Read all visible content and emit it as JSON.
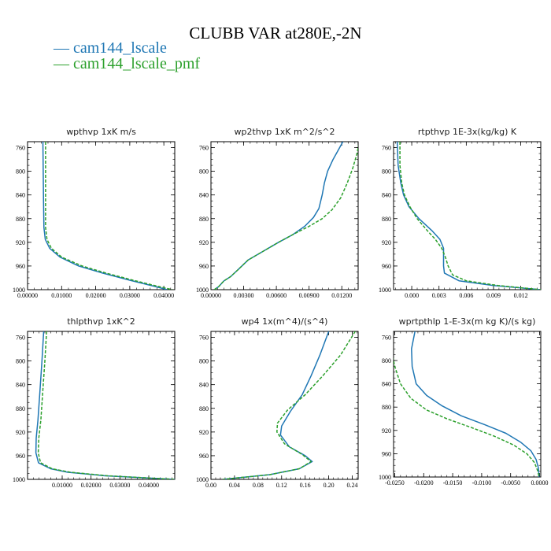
{
  "title": "CLUBB VAR at280E,-2N",
  "legend": [
    {
      "label": "— cam144_lscale",
      "color": "#1f77b4"
    },
    {
      "label": "— cam144_lscale_pmf",
      "color": "#2ca02c"
    }
  ],
  "chart_data": [
    {
      "type": "line",
      "title": "wpthvp   1xK m/s",
      "xlim": [
        0,
        0.0432
      ],
      "ylim": [
        1000,
        750
      ],
      "xticks": [
        "0.00000",
        "0.01000",
        "0.02000",
        "0.03000",
        "0.04000"
      ],
      "xtick_values": [
        0,
        0.01,
        0.02,
        0.03,
        0.04
      ],
      "yticks": [
        "760",
        "800",
        "840",
        "880",
        "920",
        "960",
        "1000"
      ],
      "ytick_values": [
        760,
        800,
        840,
        880,
        920,
        960,
        1000
      ],
      "series": [
        {
          "name": "cam144_lscale",
          "color": "#1f77b4",
          "dashed": false,
          "points": [
            [
              0.0045,
              750
            ],
            [
              0.0046,
              800
            ],
            [
              0.0047,
              850
            ],
            [
              0.0048,
              895
            ],
            [
              0.0052,
              915
            ],
            [
              0.0065,
              930
            ],
            [
              0.0095,
              945
            ],
            [
              0.015,
              960
            ],
            [
              0.022,
              972
            ],
            [
              0.03,
              984
            ],
            [
              0.037,
              994
            ],
            [
              0.041,
              1000
            ]
          ]
        },
        {
          "name": "cam144_lscale_pmf",
          "color": "#2ca02c",
          "dashed": true,
          "points": [
            [
              0.0053,
              750
            ],
            [
              0.0053,
              800
            ],
            [
              0.0053,
              850
            ],
            [
              0.0053,
              895
            ],
            [
              0.0057,
              915
            ],
            [
              0.007,
              930
            ],
            [
              0.01,
              945
            ],
            [
              0.016,
              960
            ],
            [
              0.023,
              972
            ],
            [
              0.031,
              984
            ],
            [
              0.038,
              994
            ],
            [
              0.0425,
              1000
            ]
          ]
        }
      ]
    },
    {
      "type": "line",
      "title": "wp2thvp   1xK m^2/s^2",
      "xlim": [
        0,
        0.0135
      ],
      "ylim": [
        1000,
        750
      ],
      "xticks": [
        "0.00000",
        "0.00300",
        "0.00600",
        "0.00900",
        "0.01200"
      ],
      "xtick_values": [
        0,
        0.003,
        0.006,
        0.009,
        0.012
      ],
      "yticks": [
        "760",
        "800",
        "840",
        "880",
        "920",
        "960",
        "1000"
      ],
      "ytick_values": [
        760,
        800,
        840,
        880,
        920,
        960,
        1000
      ],
      "series": [
        {
          "name": "cam144_lscale",
          "color": "#1f77b4",
          "dashed": false,
          "points": [
            [
              0.0003,
              1000
            ],
            [
              0.0007,
              995
            ],
            [
              0.0012,
              985
            ],
            [
              0.0018,
              978
            ],
            [
              0.0025,
              966
            ],
            [
              0.0034,
              950
            ],
            [
              0.0048,
              935
            ],
            [
              0.0062,
              920
            ],
            [
              0.0075,
              907
            ],
            [
              0.0086,
              893
            ],
            [
              0.0094,
              878
            ],
            [
              0.0099,
              863
            ],
            [
              0.0102,
              840
            ],
            [
              0.0104,
              820
            ],
            [
              0.0107,
              800
            ],
            [
              0.0112,
              780
            ],
            [
              0.0118,
              760
            ],
            [
              0.0121,
              750
            ]
          ]
        },
        {
          "name": "cam144_lscale_pmf",
          "color": "#2ca02c",
          "dashed": true,
          "points": [
            [
              0.0003,
              1000
            ],
            [
              0.0007,
              995
            ],
            [
              0.0012,
              985
            ],
            [
              0.0018,
              978
            ],
            [
              0.0025,
              966
            ],
            [
              0.0034,
              950
            ],
            [
              0.0048,
              935
            ],
            [
              0.0062,
              920
            ],
            [
              0.0077,
              905
            ],
            [
              0.009,
              893
            ],
            [
              0.0102,
              880
            ],
            [
              0.0111,
              865
            ],
            [
              0.0119,
              845
            ],
            [
              0.0125,
              820
            ],
            [
              0.013,
              795
            ],
            [
              0.0134,
              770
            ],
            [
              0.0136,
              750
            ]
          ]
        }
      ]
    },
    {
      "type": "line",
      "title": "rtpthvp   1E-3x(kg/kg) K",
      "xlim": [
        -0.002,
        0.0142
      ],
      "ylim": [
        1000,
        750
      ],
      "xticks": [
        "0.000",
        "0.003",
        "0.006",
        "0.009",
        "0.012"
      ],
      "xtick_values": [
        0,
        0.003,
        0.006,
        0.009,
        0.012
      ],
      "yticks": [
        "760",
        "800",
        "840",
        "880",
        "920",
        "960",
        "1000"
      ],
      "ytick_values": [
        760,
        800,
        840,
        880,
        920,
        960,
        1000
      ],
      "series": [
        {
          "name": "cam144_lscale",
          "color": "#1f77b4",
          "dashed": false,
          "points": [
            [
              -0.0016,
              750
            ],
            [
              -0.0015,
              790
            ],
            [
              -0.0012,
              820
            ],
            [
              -0.0009,
              840
            ],
            [
              -0.0003,
              860
            ],
            [
              0.0008,
              880
            ],
            [
              0.0022,
              900
            ],
            [
              0.0031,
              915
            ],
            [
              0.0035,
              930
            ],
            [
              0.0035,
              960
            ],
            [
              0.0036,
              972
            ],
            [
              0.0052,
              985
            ],
            [
              0.009,
              993
            ],
            [
              0.0142,
              1000
            ]
          ]
        },
        {
          "name": "cam144_lscale_pmf",
          "color": "#2ca02c",
          "dashed": true,
          "points": [
            [
              -0.0013,
              750
            ],
            [
              -0.0013,
              790
            ],
            [
              -0.0011,
              820
            ],
            [
              -0.0008,
              840
            ],
            [
              -0.0002,
              860
            ],
            [
              0.0006,
              880
            ],
            [
              0.0017,
              900
            ],
            [
              0.0026,
              915
            ],
            [
              0.0033,
              930
            ],
            [
              0.0037,
              945
            ],
            [
              0.004,
              960
            ],
            [
              0.0045,
              975
            ],
            [
              0.006,
              985
            ],
            [
              0.0095,
              993
            ],
            [
              0.0142,
              1000
            ]
          ]
        }
      ]
    },
    {
      "type": "line",
      "title": "thlpthvp   1xK^2",
      "xlim": [
        -0.002,
        0.049
      ],
      "ylim": [
        1000,
        750
      ],
      "xticks": [
        "0.01000",
        "0.02000",
        "0.03000",
        "0.04000"
      ],
      "xtick_values": [
        0.01,
        0.02,
        0.03,
        0.04
      ],
      "yticks": [
        "760",
        "800",
        "840",
        "880",
        "920",
        "960",
        "1000"
      ],
      "ytick_values": [
        760,
        800,
        840,
        880,
        920,
        960,
        1000
      ],
      "series": [
        {
          "name": "cam144_lscale",
          "color": "#1f77b4",
          "dashed": false,
          "points": [
            [
              0.0036,
              750
            ],
            [
              0.003,
              800
            ],
            [
              0.0023,
              850
            ],
            [
              0.0016,
              900
            ],
            [
              0.001,
              930
            ],
            [
              0.0009,
              955
            ],
            [
              0.0018,
              972
            ],
            [
              0.006,
              982
            ],
            [
              0.012,
              988
            ],
            [
              0.025,
              994
            ],
            [
              0.045,
              999
            ],
            [
              0.049,
              1000
            ]
          ]
        },
        {
          "name": "cam144_lscale_pmf",
          "color": "#2ca02c",
          "dashed": true,
          "points": [
            [
              0.0046,
              750
            ],
            [
              0.004,
              800
            ],
            [
              0.0033,
              850
            ],
            [
              0.0026,
              900
            ],
            [
              0.0019,
              930
            ],
            [
              0.0017,
              955
            ],
            [
              0.0025,
              972
            ],
            [
              0.0065,
              982
            ],
            [
              0.013,
              988
            ],
            [
              0.026,
              994
            ],
            [
              0.045,
              999
            ],
            [
              0.049,
              1000
            ]
          ]
        }
      ]
    },
    {
      "type": "line",
      "title": "wp4   1x(m^4)/(s^4)",
      "xlim": [
        0,
        0.25
      ],
      "ylim": [
        1000,
        750
      ],
      "xticks": [
        "0.00",
        "0.04",
        "0.08",
        "0.12",
        "0.16",
        "0.20",
        "0.24"
      ],
      "xtick_values": [
        0,
        0.04,
        0.08,
        0.12,
        0.16,
        0.2,
        0.24
      ],
      "yticks": [
        "760",
        "800",
        "840",
        "880",
        "920",
        "960",
        "1000"
      ],
      "ytick_values": [
        760,
        800,
        840,
        880,
        920,
        960,
        1000
      ],
      "series": [
        {
          "name": "cam144_lscale",
          "color": "#1f77b4",
          "dashed": false,
          "points": [
            [
              0.2,
              750
            ],
            [
              0.185,
              790
            ],
            [
              0.17,
              825
            ],
            [
              0.155,
              857
            ],
            [
              0.135,
              885
            ],
            [
              0.12,
              910
            ],
            [
              0.118,
              925
            ],
            [
              0.133,
              945
            ],
            [
              0.16,
              960
            ],
            [
              0.172,
              970
            ],
            [
              0.15,
              982
            ],
            [
              0.1,
              992
            ],
            [
              0.04,
              998
            ],
            [
              0.02,
              1000
            ]
          ]
        },
        {
          "name": "cam144_lscale_pmf",
          "color": "#2ca02c",
          "dashed": true,
          "points": [
            [
              0.245,
              750
            ],
            [
              0.22,
              790
            ],
            [
              0.19,
              825
            ],
            [
              0.16,
              857
            ],
            [
              0.13,
              883
            ],
            [
              0.113,
              905
            ],
            [
              0.112,
              920
            ],
            [
              0.125,
              940
            ],
            [
              0.155,
              958
            ],
            [
              0.17,
              970
            ],
            [
              0.15,
              982
            ],
            [
              0.1,
              992
            ],
            [
              0.04,
              998
            ],
            [
              0.02,
              1000
            ]
          ]
        }
      ]
    },
    {
      "type": "line",
      "title": "wprtpthlp   1-E-3x(m kg K)/(s kg)",
      "xlim": [
        -0.0252,
        0.0002
      ],
      "ylim": [
        1000,
        750
      ],
      "xticks": [
        "-0.0250",
        "-0.0200",
        "-0.0150",
        "-0.0100",
        "-0.0050",
        "0.0000"
      ],
      "xtick_values": [
        -0.025,
        -0.02,
        -0.015,
        -0.01,
        -0.005,
        0
      ],
      "yticks": [
        "760",
        "800",
        "840",
        "880",
        "920",
        "960",
        "1000"
      ],
      "ytick_values": [
        760,
        800,
        840,
        880,
        920,
        960,
        1000
      ],
      "series": [
        {
          "name": "cam144_lscale",
          "color": "#1f77b4",
          "dashed": false,
          "points": [
            [
              -0.0215,
              750
            ],
            [
              -0.0221,
              780
            ],
            [
              -0.022,
              810
            ],
            [
              -0.0213,
              840
            ],
            [
              -0.0195,
              860
            ],
            [
              -0.0168,
              878
            ],
            [
              -0.0135,
              895
            ],
            [
              -0.0095,
              910
            ],
            [
              -0.0058,
              925
            ],
            [
              -0.0033,
              940
            ],
            [
              -0.0015,
              955
            ],
            [
              -0.0006,
              970
            ],
            [
              -0.0002,
              985
            ],
            [
              -0.0001,
              1000
            ]
          ]
        },
        {
          "name": "cam144_lscale_pmf",
          "color": "#2ca02c",
          "dashed": true,
          "points": [
            [
              -0.0255,
              785
            ],
            [
              -0.025,
              810
            ],
            [
              -0.024,
              840
            ],
            [
              -0.0222,
              865
            ],
            [
              -0.0195,
              885
            ],
            [
              -0.016,
              900
            ],
            [
              -0.0118,
              915
            ],
            [
              -0.0078,
              930
            ],
            [
              -0.0045,
              945
            ],
            [
              -0.0022,
              960
            ],
            [
              -0.0009,
              975
            ],
            [
              -0.0003,
              990
            ],
            [
              -0.0001,
              1000
            ]
          ]
        }
      ]
    }
  ]
}
